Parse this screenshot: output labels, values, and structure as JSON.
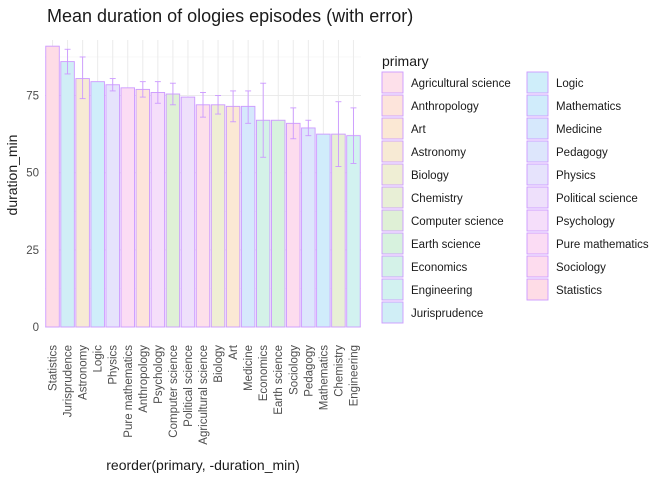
{
  "chart_data": {
    "type": "bar",
    "title": "Mean duration of ologies episodes (with error)",
    "xlabel": "reorder(primary, -duration_min)",
    "ylabel": "duration_min",
    "ylim": [
      0,
      93
    ],
    "yticks": [
      0,
      25,
      50,
      75
    ],
    "grid": true,
    "legend_title": "primary",
    "legend_position": "right",
    "bar_outline_color": "#cc99ff",
    "error_bar_color": "#cc99ff",
    "categories": [
      "Statistics",
      "Jurisprudence",
      "Astronomy",
      "Logic",
      "Physics",
      "Pure mathematics",
      "Anthropology",
      "Psychology",
      "Computer science",
      "Political science",
      "Agricultural science",
      "Biology",
      "Art",
      "Medicine",
      "Economics",
      "Earth science",
      "Sociology",
      "Pedagogy",
      "Mathematics",
      "Chemistry",
      "Engineering"
    ],
    "values": [
      91,
      86,
      80.5,
      79.5,
      78.5,
      77.5,
      77,
      76,
      75.5,
      74.5,
      72,
      72,
      71.5,
      71.5,
      67,
      67,
      66,
      64.5,
      62.5,
      62.5,
      62
    ],
    "errors": [
      [
        91,
        91
      ],
      [
        82,
        90
      ],
      [
        74,
        87.5
      ],
      [
        79.5,
        79.5
      ],
      [
        76.5,
        80.5
      ],
      [
        77.5,
        77.5
      ],
      [
        74.5,
        79.5
      ],
      [
        72.5,
        79.5
      ],
      [
        72,
        79
      ],
      [
        74.5,
        74.5
      ],
      [
        68,
        76
      ],
      [
        69,
        75
      ],
      [
        66.5,
        76.5
      ],
      [
        66,
        76.5
      ],
      [
        55,
        79
      ],
      [
        67,
        67
      ],
      [
        61,
        71
      ],
      [
        62,
        67
      ],
      [
        62.5,
        62.5
      ],
      [
        52,
        73
      ],
      [
        53,
        71
      ]
    ],
    "legend": [
      {
        "label": "Agricultural science",
        "color": "#fde0ea"
      },
      {
        "label": "Anthropology",
        "color": "#fde4db"
      },
      {
        "label": "Art",
        "color": "#fbe8d4"
      },
      {
        "label": "Astronomy",
        "color": "#f7ead4"
      },
      {
        "label": "Biology",
        "color": "#efeed4"
      },
      {
        "label": "Chemistry",
        "color": "#e8efd6"
      },
      {
        "label": "Computer science",
        "color": "#dff0d6"
      },
      {
        "label": "Earth science",
        "color": "#d7f2de"
      },
      {
        "label": "Economics",
        "color": "#d4f2e8"
      },
      {
        "label": "Engineering",
        "color": "#d2f2f0"
      },
      {
        "label": "Jurisprudence",
        "color": "#d0eef6"
      },
      {
        "label": "Logic",
        "color": "#cfeefa"
      },
      {
        "label": "Mathematics",
        "color": "#d0ecfb"
      },
      {
        "label": "Medicine",
        "color": "#d6e8fc"
      },
      {
        "label": "Pedagogy",
        "color": "#dde6fc"
      },
      {
        "label": "Physics",
        "color": "#e6e3fc"
      },
      {
        "label": "Political science",
        "color": "#eee0fb"
      },
      {
        "label": "Psychology",
        "color": "#f5defa"
      },
      {
        "label": "Pure mathematics",
        "color": "#fbdcf4"
      },
      {
        "label": "Sociology",
        "color": "#fddcee"
      },
      {
        "label": "Statistics",
        "color": "#fedce6"
      }
    ]
  }
}
